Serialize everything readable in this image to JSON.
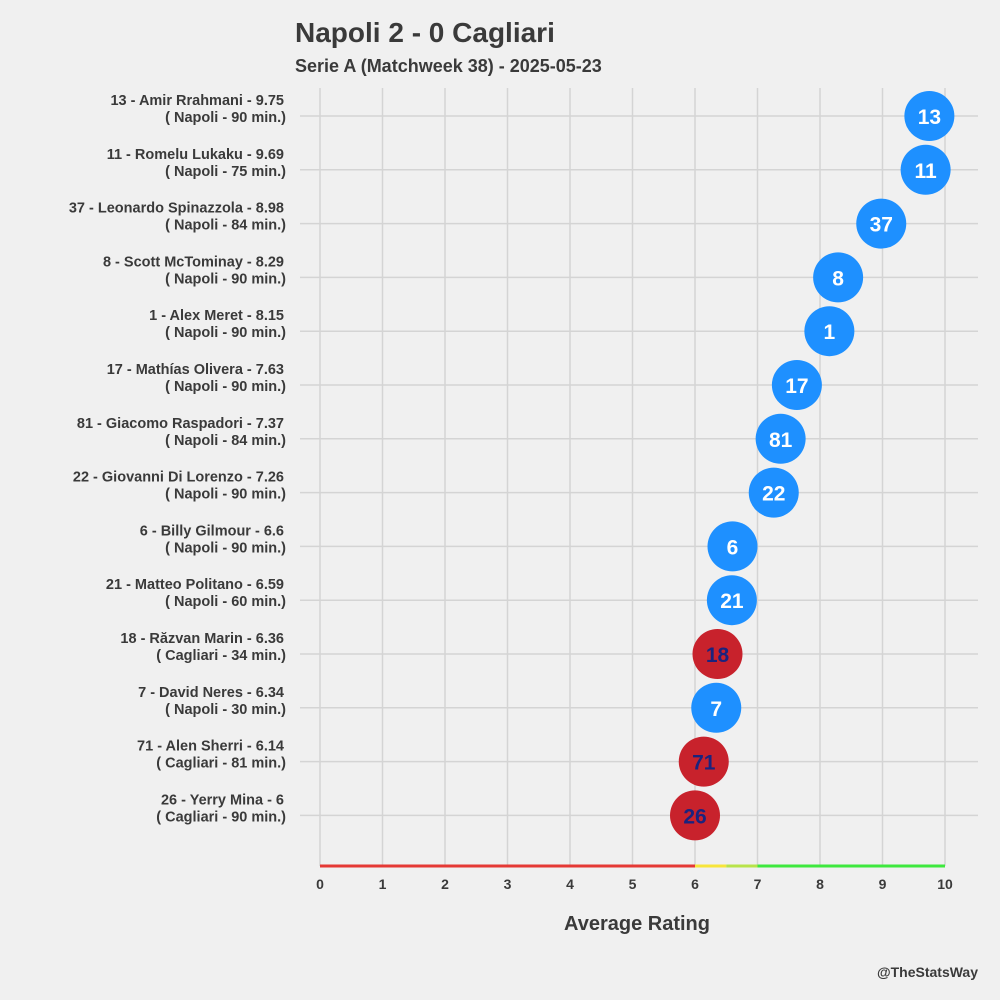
{
  "chart_data": {
    "type": "scatter",
    "title": "Napoli  2 - 0  Cagliari",
    "subtitle": "Serie A (Matchweek 38) - 2025-05-23",
    "xlabel": "Average Rating",
    "xlim": [
      0,
      10
    ],
    "xticks": [
      "0",
      "1",
      "2",
      "3",
      "4",
      "5",
      "6",
      "7",
      "8",
      "9",
      "10"
    ],
    "credit": "@TheStatsWay",
    "team_colors": {
      "Napoli": "#1e90ff",
      "Cagliari": "#c8222c"
    },
    "number_colors": {
      "Napoli": "#ffffff",
      "Cagliari": "#1a237e"
    },
    "rating_bands": [
      {
        "from": 0,
        "to": 6,
        "color": "#e53935"
      },
      {
        "from": 6,
        "to": 6.5,
        "color": "#f7e53a"
      },
      {
        "from": 6.5,
        "to": 7,
        "color": "#b8e34a"
      },
      {
        "from": 7,
        "to": 10,
        "color": "#3ee83e"
      }
    ],
    "players": [
      {
        "number": "13",
        "name": "Amir Rrahmani",
        "rating": 9.75,
        "rating_label": "9.75",
        "team": "Napoli",
        "minutes": "90",
        "line1": "13 - Amir Rrahmani - 9.75",
        "line2": "( Napoli - 90 min.)"
      },
      {
        "number": "11",
        "name": "Romelu Lukaku",
        "rating": 9.69,
        "rating_label": "9.69",
        "team": "Napoli",
        "minutes": "75",
        "line1": "11 - Romelu Lukaku - 9.69",
        "line2": "( Napoli - 75 min.)"
      },
      {
        "number": "37",
        "name": "Leonardo Spinazzola",
        "rating": 8.98,
        "rating_label": "8.98",
        "team": "Napoli",
        "minutes": "84",
        "line1": "37 - Leonardo Spinazzola - 8.98",
        "line2": "( Napoli - 84 min.)"
      },
      {
        "number": "8",
        "name": "Scott McTominay",
        "rating": 8.29,
        "rating_label": "8.29",
        "team": "Napoli",
        "minutes": "90",
        "line1": "8 - Scott McTominay - 8.29",
        "line2": "( Napoli - 90 min.)"
      },
      {
        "number": "1",
        "name": "Alex Meret",
        "rating": 8.15,
        "rating_label": "8.15",
        "team": "Napoli",
        "minutes": "90",
        "line1": "1 - Alex Meret - 8.15",
        "line2": "( Napoli - 90 min.)"
      },
      {
        "number": "17",
        "name": "Mathías Olivera",
        "rating": 7.63,
        "rating_label": "7.63",
        "team": "Napoli",
        "minutes": "90",
        "line1": "17 - Mathías Olivera - 7.63",
        "line2": "( Napoli - 90 min.)"
      },
      {
        "number": "81",
        "name": "Giacomo Raspadori",
        "rating": 7.37,
        "rating_label": "7.37",
        "team": "Napoli",
        "minutes": "84",
        "line1": "81 - Giacomo Raspadori - 7.37",
        "line2": "( Napoli - 84 min.)"
      },
      {
        "number": "22",
        "name": "Giovanni Di Lorenzo",
        "rating": 7.26,
        "rating_label": "7.26",
        "team": "Napoli",
        "minutes": "90",
        "line1": "22 - Giovanni Di Lorenzo - 7.26",
        "line2": "( Napoli - 90 min.)"
      },
      {
        "number": "6",
        "name": "Billy Gilmour",
        "rating": 6.6,
        "rating_label": "6.6",
        "team": "Napoli",
        "minutes": "90",
        "line1": "6 - Billy Gilmour - 6.6",
        "line2": "( Napoli - 90 min.)"
      },
      {
        "number": "21",
        "name": "Matteo Politano",
        "rating": 6.59,
        "rating_label": "6.59",
        "team": "Napoli",
        "minutes": "60",
        "line1": "21 - Matteo Politano - 6.59",
        "line2": "( Napoli - 60 min.)"
      },
      {
        "number": "18",
        "name": "Răzvan Marin",
        "rating": 6.36,
        "rating_label": "6.36",
        "team": "Cagliari",
        "minutes": "34",
        "line1": "18 - Răzvan Marin - 6.36",
        "line2": "( Cagliari - 34 min.)"
      },
      {
        "number": "7",
        "name": "David Neres",
        "rating": 6.34,
        "rating_label": "6.34",
        "team": "Napoli",
        "minutes": "30",
        "line1": "7 - David Neres - 6.34",
        "line2": "( Napoli - 30 min.)"
      },
      {
        "number": "71",
        "name": "Alen Sherri",
        "rating": 6.14,
        "rating_label": "6.14",
        "team": "Cagliari",
        "minutes": "81",
        "line1": "71 - Alen Sherri - 6.14",
        "line2": "( Cagliari - 81 min.)"
      },
      {
        "number": "26",
        "name": "Yerry Mina",
        "rating": 6,
        "rating_label": "6",
        "team": "Cagliari",
        "minutes": "90",
        "line1": "26 - Yerry Mina - 6",
        "line2": "( Cagliari - 90 min.)"
      }
    ]
  }
}
